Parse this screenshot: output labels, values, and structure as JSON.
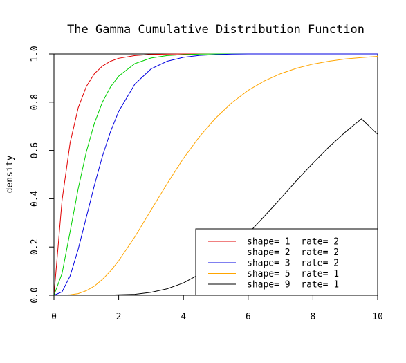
{
  "chart_data": {
    "type": "line",
    "title": "The Gamma Cumulative Distribution Function",
    "xlabel": "",
    "ylabel": "density",
    "xlim": [
      0,
      10
    ],
    "ylim": [
      0,
      1
    ],
    "x_ticks": [
      "0",
      "2",
      "4",
      "6",
      "8",
      "10"
    ],
    "y_ticks": [
      "0.0",
      "0.2",
      "0.4",
      "0.6",
      "0.8",
      "1.0"
    ],
    "grid": false,
    "legend_position": "bottom-right",
    "x": [
      0,
      0.25,
      0.5,
      0.75,
      1,
      1.25,
      1.5,
      1.75,
      2,
      2.5,
      3,
      3.5,
      4,
      4.5,
      5,
      5.5,
      6,
      6.5,
      7,
      7.5,
      8,
      8.5,
      9,
      9.5,
      10
    ],
    "series": [
      {
        "name": "shape= 1  rate= 2",
        "color": "#e00000",
        "values": [
          0,
          0.393,
          0.632,
          0.777,
          0.865,
          0.918,
          0.95,
          0.97,
          0.982,
          0.993,
          0.998,
          0.999,
          1.0,
          1.0,
          1.0,
          1.0,
          1.0,
          1.0,
          1.0,
          1.0,
          1.0,
          1.0,
          1.0,
          1.0,
          1.0
        ]
      },
      {
        "name": "shape= 2  rate= 2",
        "color": "#00d000",
        "values": [
          0,
          0.09,
          0.264,
          0.442,
          0.594,
          0.713,
          0.801,
          0.864,
          0.908,
          0.96,
          0.983,
          0.993,
          0.997,
          0.999,
          1.0,
          1.0,
          1.0,
          1.0,
          1.0,
          1.0,
          1.0,
          1.0,
          1.0,
          1.0,
          1.0
        ]
      },
      {
        "name": "shape= 3  rate= 2",
        "color": "#0000e0",
        "values": [
          0,
          0.014,
          0.08,
          0.191,
          0.323,
          0.456,
          0.577,
          0.679,
          0.762,
          0.875,
          0.938,
          0.97,
          0.986,
          0.994,
          0.997,
          0.999,
          1.0,
          1.0,
          1.0,
          1.0,
          1.0,
          1.0,
          1.0,
          1.0,
          1.0
        ]
      },
      {
        "name": "shape= 5  rate= 1",
        "color": "#ffa500",
        "values": [
          0,
          0.0001,
          0.002,
          0.007,
          0.019,
          0.038,
          0.066,
          0.101,
          0.143,
          0.242,
          0.353,
          0.463,
          0.567,
          0.658,
          0.735,
          0.798,
          0.849,
          0.888,
          0.918,
          0.941,
          0.958,
          0.97,
          0.979,
          0.985,
          0.99
        ]
      },
      {
        "name": "shape= 9  rate= 1",
        "color": "#000000",
        "values": [
          0,
          0,
          0,
          0,
          0.0001,
          0.0002,
          0.0004,
          0.001,
          0.002,
          0.004,
          0.012,
          0.027,
          0.051,
          0.087,
          0.132,
          0.191,
          0.256,
          0.327,
          0.401,
          0.476,
          0.547,
          0.615,
          0.676,
          0.731,
          0.667
        ]
      }
    ]
  }
}
